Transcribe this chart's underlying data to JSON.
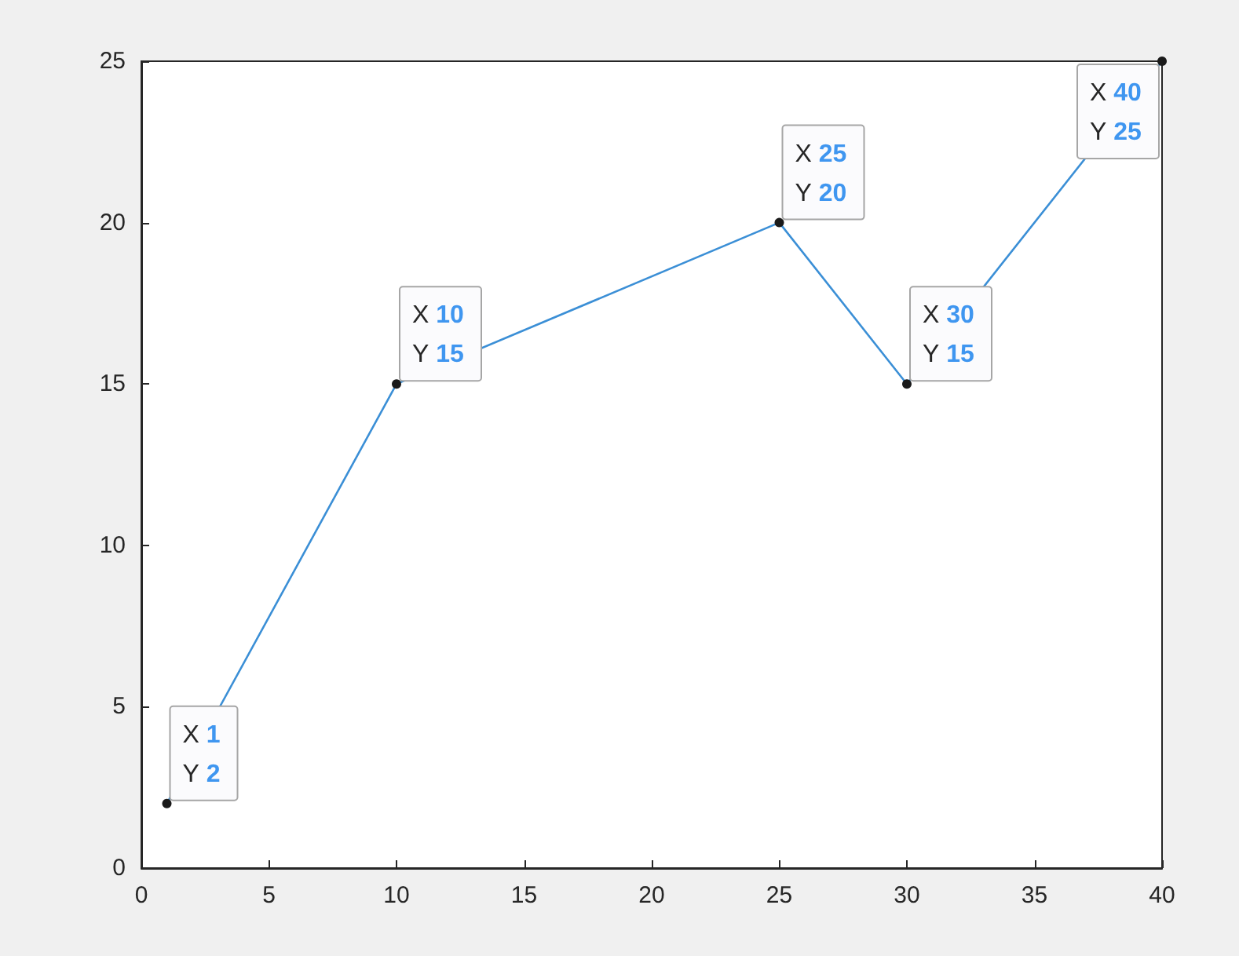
{
  "chart_data": {
    "type": "line",
    "x": [
      1,
      10,
      25,
      30,
      40
    ],
    "series": [
      {
        "color": "#3b8fd6",
        "values": [
          2,
          15,
          20,
          15,
          25
        ]
      }
    ],
    "xlim": [
      0,
      40
    ],
    "xticks": [
      0,
      5,
      10,
      15,
      20,
      25,
      30,
      35,
      40
    ],
    "ylim": [
      0,
      25
    ],
    "yticks": [
      0,
      5,
      10,
      15,
      20,
      25
    ],
    "marker": "circle",
    "annotations": [
      {
        "text": "X 1\nY 2",
        "x": 1,
        "y": 2
      },
      {
        "text": "X 10\nY 15",
        "x": 10,
        "y": 15
      },
      {
        "text": "X 25\nY 20",
        "x": 25,
        "y": 20
      },
      {
        "text": "X 30\nY 15",
        "x": 30,
        "y": 15
      },
      {
        "text": "X 40\nY 25",
        "x": 40,
        "y": 25
      }
    ]
  }
}
